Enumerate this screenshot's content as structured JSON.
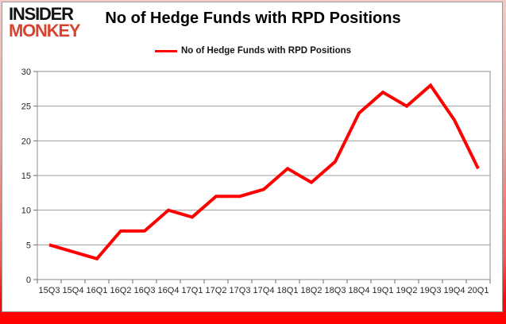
{
  "logo": {
    "line1": "INSIDER",
    "line2": "MONKEY",
    "line1_color": "#121212",
    "line2_color": "#d8432f"
  },
  "chart_data": {
    "type": "line",
    "title": "No of Hedge Funds with RPD Positions",
    "categories": [
      "15Q3",
      "15Q4",
      "16Q1",
      "16Q2",
      "16Q3",
      "16Q4",
      "17Q1",
      "17Q2",
      "17Q3",
      "17Q4",
      "18Q1",
      "18Q2",
      "18Q3",
      "18Q4",
      "19Q1",
      "19Q2",
      "19Q3",
      "19Q4",
      "20Q1"
    ],
    "series": [
      {
        "name": "No of Hedge Funds with RPD Positions",
        "color": "#ff0000",
        "values": [
          5,
          4,
          3,
          7,
          7,
          10,
          9,
          12,
          12,
          13,
          16,
          14,
          17,
          24,
          27,
          25,
          28,
          23,
          16
        ]
      }
    ],
    "xlabel": "",
    "ylabel": "",
    "ylim": [
      0,
      30
    ],
    "yticks": [
      0,
      5,
      10,
      15,
      20,
      25,
      30
    ],
    "grid": true,
    "legend_position": "top-center"
  },
  "colors": {
    "plot_border": "#8c8c8c",
    "gridline": "#9b9b9b",
    "tick": "#6e6e6e",
    "tick_label": "#262626",
    "frame_top": "#f4c9c6",
    "frame_bottom": "#ff0000",
    "panel_border": "#9a9a9a"
  }
}
